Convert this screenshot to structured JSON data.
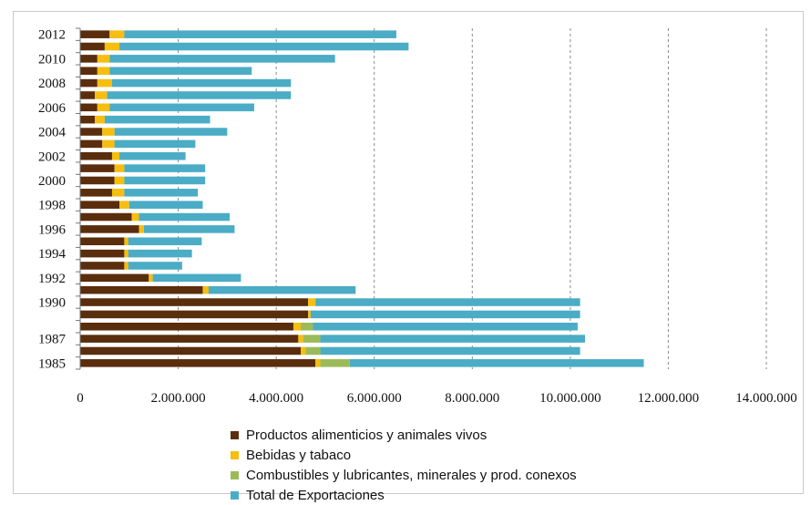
{
  "chart_data": {
    "type": "bar",
    "orientation": "horizontal",
    "stacked": true,
    "categories": [
      "1985",
      "1986",
      "1987",
      "1988",
      "1989",
      "1990",
      "1991",
      "1992",
      "1993",
      "1994",
      "1995",
      "1996",
      "1997",
      "1998",
      "1999",
      "2000",
      "2001",
      "2002",
      "2003",
      "2004",
      "2005",
      "2006",
      "2007",
      "2008",
      "2009",
      "2010",
      "2011",
      "2012"
    ],
    "category_labels": [
      "1985",
      "",
      "1987",
      "",
      "",
      "1990",
      "",
      "1992",
      "",
      "1994",
      "",
      "1996",
      "",
      "1998",
      "",
      "2000",
      "",
      "2002",
      "",
      "2004",
      "",
      "2006",
      "",
      "2008",
      "",
      "2010",
      "",
      "2012"
    ],
    "series": [
      {
        "name": "Productos alimenticios y animales vivos",
        "color": "#5a2d0c",
        "values": [
          4800000,
          4500000,
          4450000,
          4350000,
          4650000,
          4650000,
          2500000,
          1400000,
          900000,
          900000,
          900000,
          1200000,
          1050000,
          800000,
          650000,
          700000,
          700000,
          650000,
          450000,
          450000,
          300000,
          350000,
          300000,
          350000,
          350000,
          350000,
          500000,
          600000
        ]
      },
      {
        "name": "Bebidas y tabaco",
        "color": "#f5be10",
        "values": [
          100000,
          100000,
          100000,
          150000,
          50000,
          150000,
          120000,
          80000,
          80000,
          80000,
          80000,
          100000,
          150000,
          200000,
          250000,
          200000,
          200000,
          150000,
          250000,
          250000,
          200000,
          250000,
          250000,
          300000,
          250000,
          250000,
          300000,
          300000
        ]
      },
      {
        "name": "Combustibles y lubricantes, minerales y prod. conexos",
        "color": "#9bbb59",
        "values": [
          600000,
          300000,
          350000,
          250000,
          0,
          0,
          0,
          0,
          0,
          0,
          0,
          0,
          0,
          0,
          0,
          0,
          0,
          0,
          0,
          0,
          0,
          0,
          0,
          0,
          0,
          0,
          0,
          0
        ]
      },
      {
        "name": "Total de Exportaciones",
        "color": "#4bacc6",
        "values": [
          6000000,
          5300000,
          5400000,
          5400000,
          5500000,
          5400000,
          3000000,
          1800000,
          1100000,
          1300000,
          1500000,
          1850000,
          1850000,
          1500000,
          1500000,
          1650000,
          1650000,
          1350000,
          1650000,
          2300000,
          2150000,
          2950000,
          3750000,
          3650000,
          2900000,
          4600000,
          5900000,
          5550000
        ]
      }
    ],
    "xlim": [
      0,
      14000000
    ],
    "x_ticks": [
      0,
      2000000,
      4000000,
      6000000,
      8000000,
      10000000,
      12000000,
      14000000
    ],
    "x_tick_labels": [
      "0",
      "2.000.000",
      "4.000.000",
      "6.000.000",
      "8.000.000",
      "10.000.000",
      "12.000.000",
      "14.000.000"
    ],
    "grid": "vertical-dashed",
    "legend_position": "bottom",
    "title": "",
    "xlabel": "",
    "ylabel": ""
  }
}
